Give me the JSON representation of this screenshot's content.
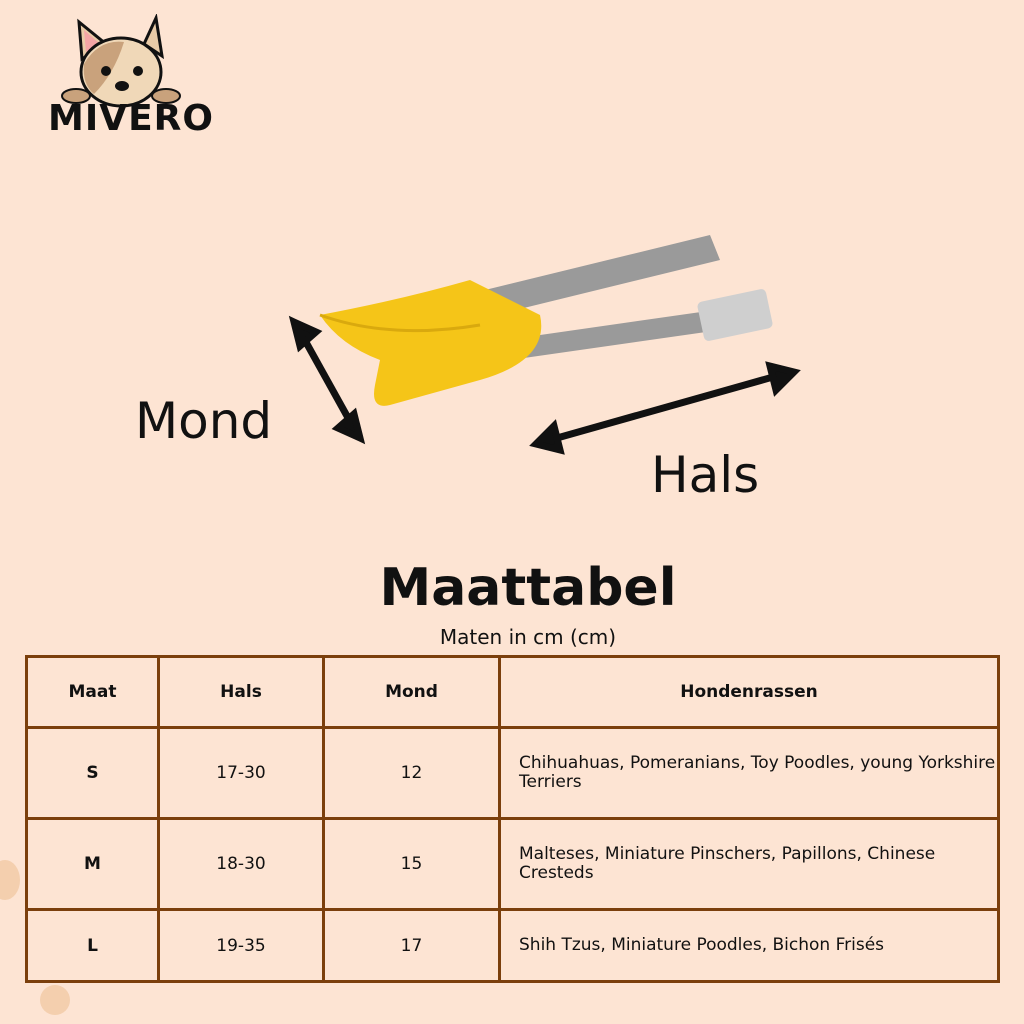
{
  "brand": {
    "name": "MIVERO"
  },
  "diagram": {
    "mond_label": "Mond",
    "hals_label": "Hals"
  },
  "size_chart": {
    "title": "Maattabel",
    "subtitle": "Maten in cm (cm)",
    "headers": [
      "Maat",
      "Hals",
      "Mond",
      "Hondenrassen"
    ],
    "rows": [
      {
        "size": "S",
        "hals": "17-30",
        "mond": "12",
        "breeds": "Chihuahuas, Pomeranians, Toy Poodles,  young Yorkshire Terriers"
      },
      {
        "size": "M",
        "hals": "18-30",
        "mond": "15",
        "breeds": "Malteses, Miniature Pinschers, Papillons, Chinese Cresteds"
      },
      {
        "size": "L",
        "hals": "19-35",
        "mond": "17",
        "breeds": "Shih Tzus, Miniature Poodles, Bichon Frisés"
      }
    ]
  },
  "colors": {
    "background": "#fde4d3",
    "table_border": "#7b3f0c",
    "muzzle": "#f5c518",
    "strap": "#9a9a9a"
  }
}
